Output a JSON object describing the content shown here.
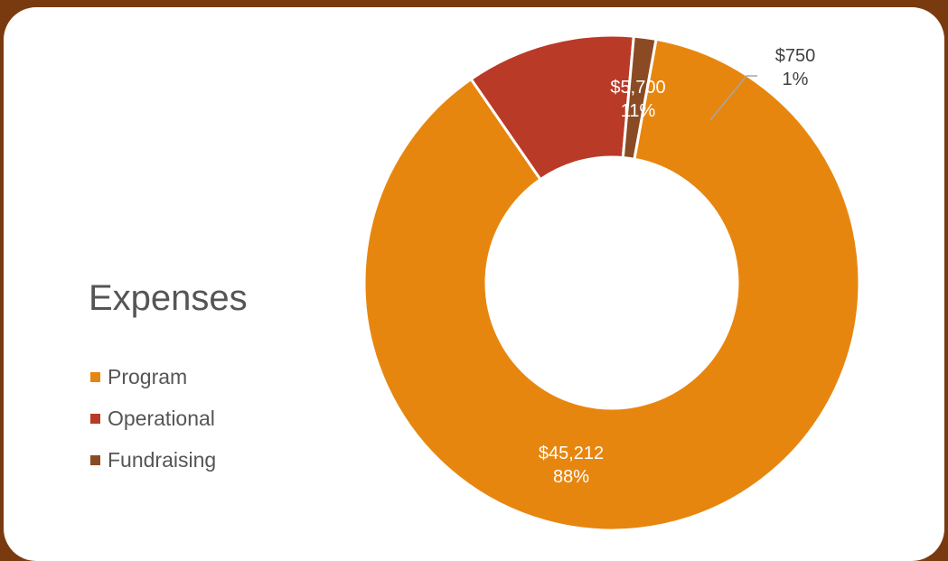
{
  "chart_data": {
    "type": "pie",
    "title": "Expenses",
    "categories": [
      "Program",
      "Operational",
      "Fundraising"
    ],
    "values": [
      45212,
      5700,
      750
    ],
    "value_labels": [
      "$45,212",
      "$5,700",
      "$750"
    ],
    "percent_labels": [
      "88%",
      "11%",
      "1%"
    ],
    "colors": [
      "#e7860f",
      "#b93a26",
      "#8a4b24"
    ],
    "legend_position": "left"
  }
}
